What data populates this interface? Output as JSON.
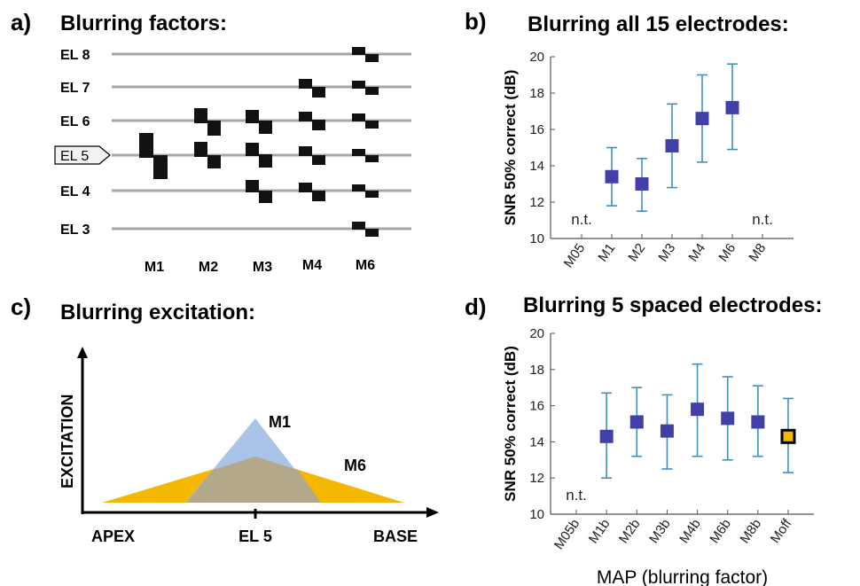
{
  "panels": {
    "a": {
      "letter": "a)",
      "title": "Blurring factors:"
    },
    "b": {
      "letter": "b)",
      "title": "Blurring all 15 electrodes:"
    },
    "c": {
      "letter": "c)",
      "title": "Blurring excitation:"
    },
    "d": {
      "letter": "d)",
      "title": "Blurring 5 spaced electrodes:"
    }
  },
  "diagram_a": {
    "electrodes": [
      "EL 8",
      "EL 7",
      "EL 6",
      "EL 5",
      "EL 4",
      "EL 3"
    ],
    "highlighted_electrode": "EL 5",
    "maps": [
      "M1",
      "M2",
      "M3",
      "M4",
      "M6"
    ]
  },
  "diagram_c": {
    "y_axis_label": "EXCITATION",
    "x_labels": {
      "left": "APEX",
      "center": "EL 5",
      "right": "BASE"
    },
    "curves": [
      {
        "name": "M1",
        "color": "#a9c4e8"
      },
      {
        "name": "M6",
        "color": "#f5b800"
      }
    ],
    "overlap_color": "#b3a98a"
  },
  "chart_data": [
    {
      "type": "scatter",
      "panel": "b",
      "title": "Blurring all 15 electrodes:",
      "ylabel": "SNR 50% correct (dB)",
      "xlabel": "",
      "ylim": [
        10,
        20
      ],
      "yticks": [
        10,
        12,
        14,
        16,
        18,
        20
      ],
      "categories": [
        "M05",
        "M1",
        "M2",
        "M3",
        "M4",
        "M6",
        "M8"
      ],
      "means": [
        null,
        13.4,
        13.0,
        15.1,
        16.6,
        17.2,
        null
      ],
      "err_low": [
        null,
        11.8,
        11.5,
        12.8,
        14.2,
        14.9,
        null
      ],
      "err_high": [
        null,
        15.0,
        14.4,
        17.4,
        19.0,
        19.6,
        null
      ],
      "not_tested_label": "n.t.",
      "not_tested": [
        "M05",
        "M8"
      ],
      "marker_color": "#4040a8",
      "errorbar_color": "#3f8fbf"
    },
    {
      "type": "scatter",
      "panel": "d",
      "title": "Blurring 5 spaced electrodes:",
      "ylabel": "SNR 50% correct (dB)",
      "xlabel": "MAP (blurring factor)",
      "ylim": [
        10,
        20
      ],
      "yticks": [
        10,
        12,
        14,
        16,
        18,
        20
      ],
      "categories": [
        "M05b",
        "M1b",
        "M2b",
        "M3b",
        "M4b",
        "M6b",
        "M8b",
        "Moff"
      ],
      "means": [
        null,
        14.3,
        15.1,
        14.6,
        15.8,
        15.3,
        15.1,
        14.3
      ],
      "err_low": [
        null,
        12.0,
        13.2,
        12.5,
        13.2,
        13.0,
        13.2,
        12.3
      ],
      "err_high": [
        null,
        16.7,
        17.0,
        16.6,
        18.3,
        17.6,
        17.1,
        16.4
      ],
      "not_tested_label": "n.t.",
      "not_tested": [
        "M05b"
      ],
      "marker_color": "#4040a8",
      "highlight_category": "Moff",
      "highlight_color": "#f5b800",
      "errorbar_color": "#3f8fbf"
    }
  ]
}
